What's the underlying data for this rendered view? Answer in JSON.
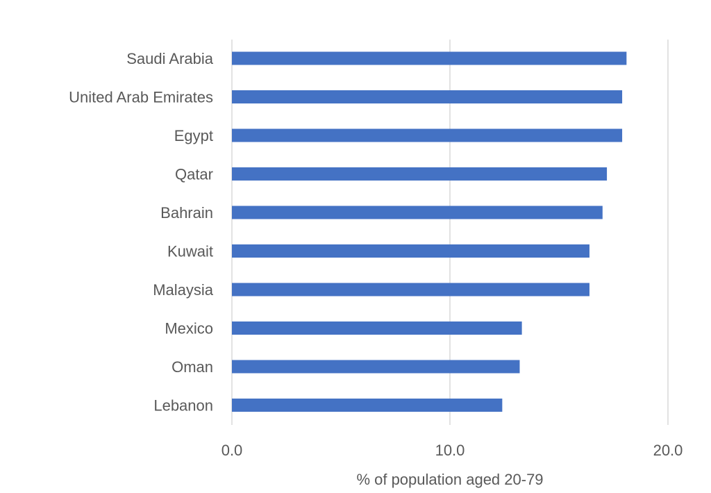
{
  "chart_data": {
    "type": "bar",
    "orientation": "horizontal",
    "categories": [
      "Saudi Arabia",
      "United Arab Emirates",
      "Egypt",
      "Qatar",
      "Bahrain",
      "Kuwait",
      "Malaysia",
      "Mexico",
      "Oman",
      "Lebanon"
    ],
    "values": [
      18.1,
      17.9,
      17.9,
      17.2,
      17.0,
      16.4,
      16.4,
      13.3,
      13.2,
      12.4
    ],
    "xlabel": "% of population aged 20-79",
    "ylabel": "",
    "xlim": [
      0,
      20
    ],
    "xticks": [
      "0.0",
      "10.0",
      "20.0"
    ],
    "xtick_values": [
      0,
      10,
      20
    ],
    "grid": "vertical",
    "bar_color": "#4472C4",
    "grid_color": "#D9D9D9"
  }
}
